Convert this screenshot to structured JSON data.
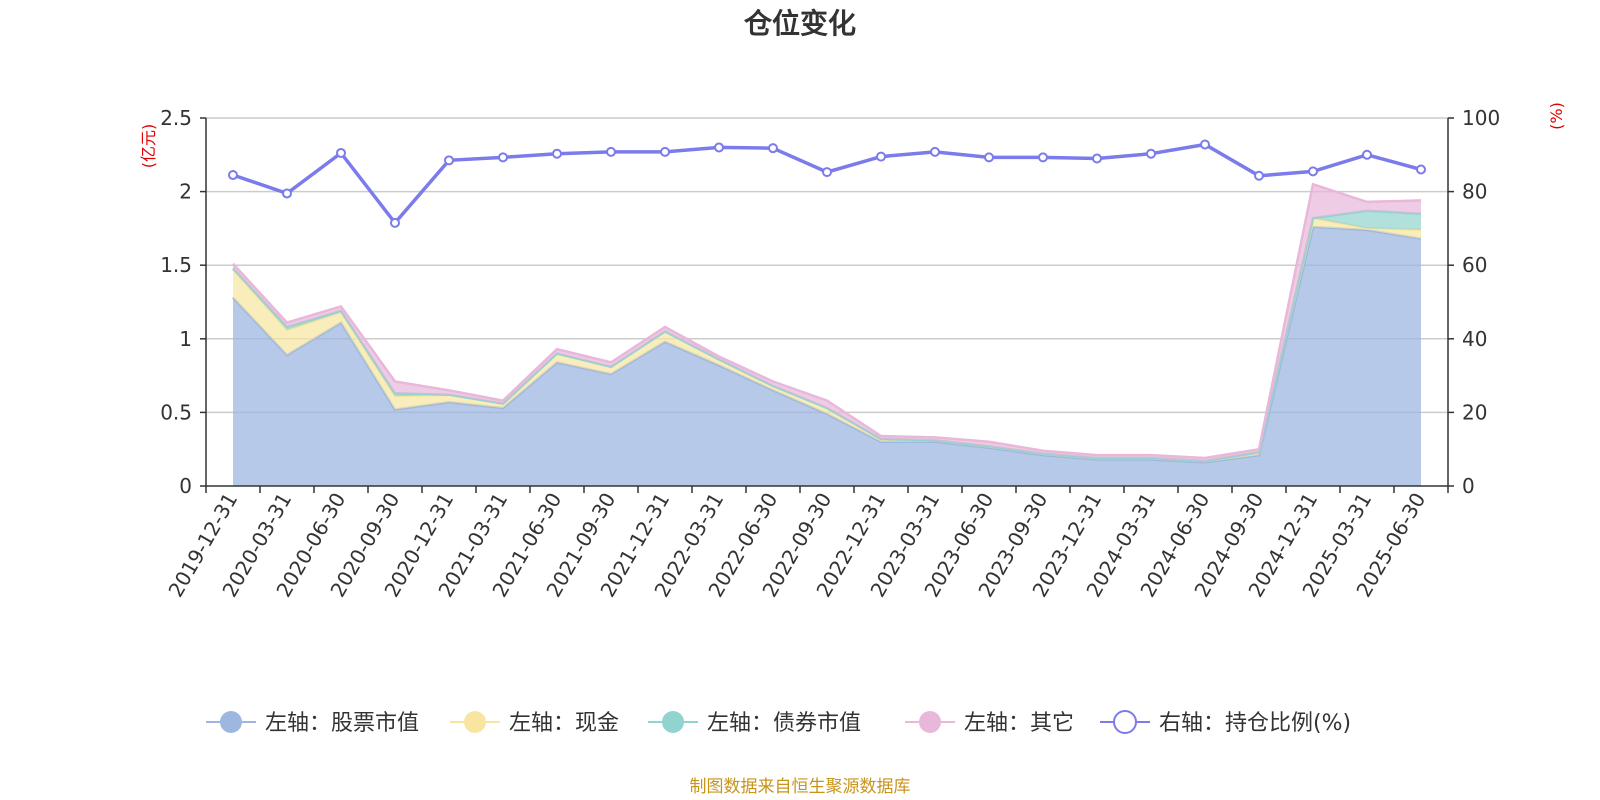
{
  "chart_data": {
    "type": "area",
    "title": "仓位变化",
    "categories": [
      "2019-12-31",
      "2020-03-31",
      "2020-06-30",
      "2020-09-30",
      "2020-12-31",
      "2021-03-31",
      "2021-06-30",
      "2021-09-30",
      "2021-12-31",
      "2022-03-31",
      "2022-06-30",
      "2022-09-30",
      "2022-12-31",
      "2023-03-31",
      "2023-06-30",
      "2023-09-30",
      "2023-12-31",
      "2024-03-31",
      "2024-06-30",
      "2024-09-30",
      "2024-12-31",
      "2025-03-31",
      "2025-06-30"
    ],
    "y_left": {
      "unit": "(亿元)",
      "range": [
        0,
        2.5
      ],
      "ticks": [
        "0",
        "0.5",
        "1",
        "1.5",
        "2",
        "2.5"
      ]
    },
    "y_right": {
      "unit": "(%)",
      "range": [
        0,
        100
      ],
      "ticks": [
        "0",
        "20",
        "40",
        "60",
        "80",
        "100"
      ]
    },
    "series": [
      {
        "name": "左轴：股票市值",
        "axis": "left",
        "stack": true,
        "color": "#9db7e0",
        "values": [
          1.28,
          0.89,
          1.11,
          0.52,
          0.57,
          0.53,
          0.84,
          0.76,
          0.98,
          0.82,
          0.65,
          0.49,
          0.3,
          0.3,
          0.26,
          0.21,
          0.18,
          0.18,
          0.16,
          0.21,
          1.76,
          1.74,
          1.68
        ]
      },
      {
        "name": "左轴：现金",
        "axis": "left",
        "stack": true,
        "color": "#f8e6a0",
        "values": [
          0.19,
          0.17,
          0.07,
          0.09,
          0.05,
          0.03,
          0.06,
          0.05,
          0.07,
          0.04,
          0.03,
          0.04,
          0.02,
          0.01,
          0.01,
          0.01,
          0.01,
          0.01,
          0.01,
          0.02,
          0.06,
          0.01,
          0.06
        ]
      },
      {
        "name": "左轴：债券市值",
        "axis": "left",
        "stack": true,
        "color": "#90d3cf",
        "values": [
          0.01,
          0.02,
          0.01,
          0.02,
          0,
          0,
          0,
          0,
          0,
          0,
          0,
          0,
          0,
          0,
          0,
          0,
          0,
          0,
          0,
          0,
          0,
          0.12,
          0.11
        ]
      },
      {
        "name": "左轴：其它",
        "axis": "left",
        "stack": true,
        "color": "#e8b7da",
        "values": [
          0.03,
          0.03,
          0.03,
          0.08,
          0.03,
          0.02,
          0.03,
          0.03,
          0.03,
          0.02,
          0.03,
          0.05,
          0.02,
          0.02,
          0.03,
          0.02,
          0.02,
          0.02,
          0.02,
          0.02,
          0.23,
          0.06,
          0.09
        ]
      },
      {
        "name": "右轴：持仓比例(%)",
        "axis": "right",
        "type": "line",
        "color": "#7b7beb",
        "values": [
          84.5,
          79.5,
          90.5,
          71.5,
          88.5,
          89.3,
          90.3,
          90.8,
          90.8,
          92.0,
          91.8,
          85.3,
          89.5,
          90.8,
          89.3,
          89.3,
          89.0,
          90.3,
          92.8,
          84.3,
          85.5,
          90.0,
          86.0
        ]
      }
    ],
    "legend_position": "bottom",
    "grid": true
  },
  "footer": {
    "source": "制图数据来自恒生聚源数据库"
  }
}
